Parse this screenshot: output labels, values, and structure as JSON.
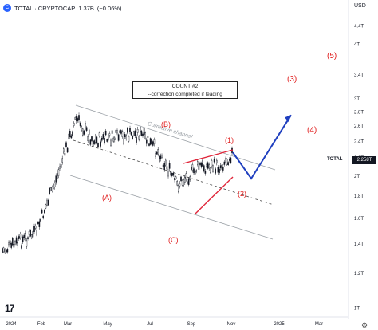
{
  "header": {
    "symbol": "TOTAL · CRYPTOCAP",
    "last": "1.37B",
    "change": "(−0.06%)",
    "currency": "USD"
  },
  "price_tag": {
    "label": "TOTAL",
    "value": "2.258T"
  },
  "annotation_box": {
    "line1": "COUNT #2",
    "line2": "--correction  completed if leading"
  },
  "channel_label": "Corrective channel",
  "wave_labels": {
    "A": "(A)",
    "B": "(B)",
    "C": "(C)",
    "w1": "(1)",
    "w2": "(2)",
    "w3": "(3)",
    "w4": "(4)",
    "w5": "(5)"
  },
  "colors": {
    "candles": "#131722",
    "channel": "#9aa0a6",
    "wave_labels": "#e01c1c",
    "projection": "#1f3fbf",
    "triangle": "#e0263a"
  },
  "icons": [
    "tradingview-logo-icon",
    "settings-gear-icon",
    "cryptocap-logo-icon"
  ],
  "chart_data": {
    "type": "line",
    "title": "TOTAL · CRYPTOCAP",
    "xlabel": "",
    "ylabel": "",
    "y_scale": "log",
    "ylim": [
      1.0,
      4.4
    ],
    "y_ticks": [
      "4.4T",
      "4T",
      "3.4T",
      "3T",
      "2.8T",
      "2.6T",
      "2.4T",
      "2.2T",
      "2T",
      "1.8T",
      "1.6T",
      "1.4T",
      "1.2T",
      "1T"
    ],
    "x_ticks": [
      "2024",
      "Feb",
      "Mar",
      "May",
      "Jul",
      "Sep",
      "Nov",
      "2025",
      "Mar"
    ],
    "x": [
      "2024-01",
      "2024-02",
      "2024-03",
      "2024-03b",
      "2024-04",
      "2024-05",
      "2024-06",
      "2024-07",
      "2024-08",
      "2024-09",
      "2024-10",
      "2024-10b"
    ],
    "series": [
      {
        "values": [
          1.35,
          1.48,
          2.0,
          2.7,
          2.4,
          2.45,
          2.5,
          2.25,
          1.9,
          2.1,
          2.1,
          2.26
        ]
      }
    ],
    "projection": [
      {
        "x": "2024-10b",
        "y": 2.26
      },
      {
        "x": "2024-11",
        "y": 1.97
      },
      {
        "x": "2024-12",
        "y": 2.75
      }
    ],
    "legend": "none",
    "grid": false
  }
}
